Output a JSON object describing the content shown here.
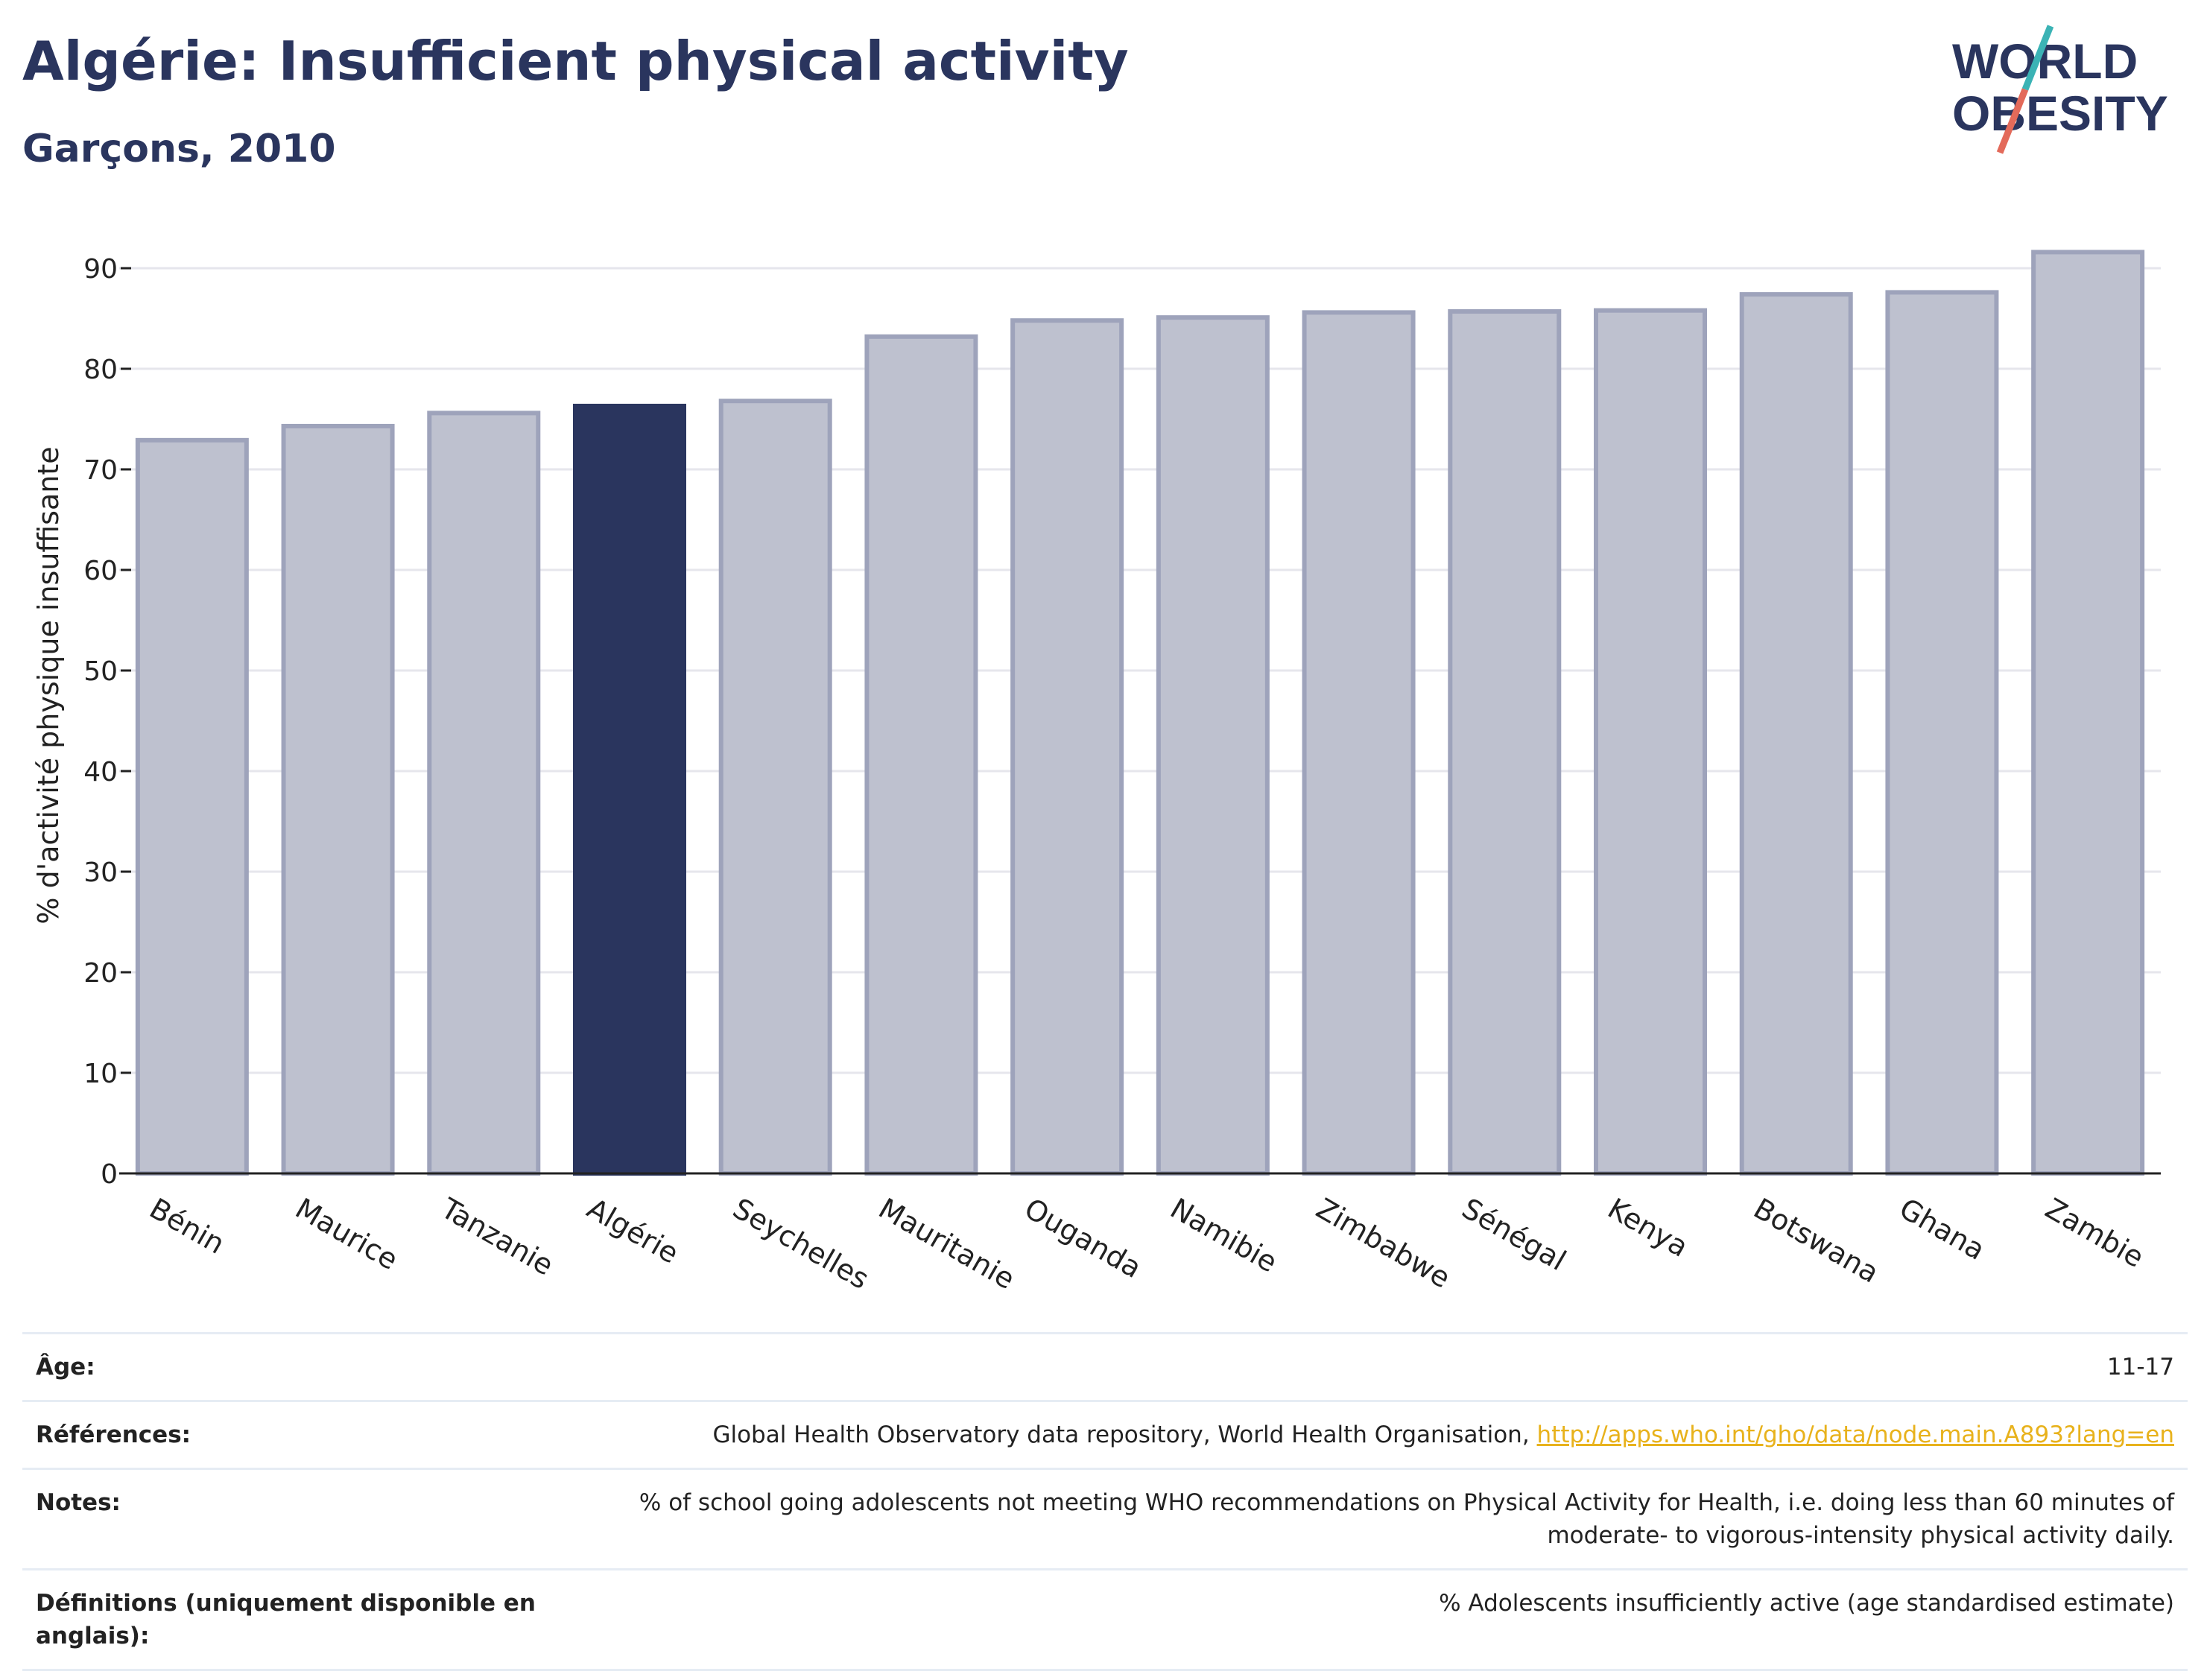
{
  "header": {
    "title": "Algérie: Insufficient physical activity",
    "subtitle": "Garçons, 2010"
  },
  "logo": {
    "line1": "WORLD",
    "line2": "OBESITY"
  },
  "colors": {
    "highlight": "#2a355e",
    "bar": "#bec1cf",
    "bar_stroke": "#9ea3bb",
    "accent_teal": "#3bb3b5",
    "accent_red": "#e36a5a"
  },
  "chart_data": {
    "type": "bar",
    "title": "Algérie: Insufficient physical activity",
    "subtitle": "Garçons, 2010",
    "xlabel": "",
    "ylabel": "% d'activité physique insuffisante",
    "ylim": [
      0,
      93
    ],
    "yticks": [
      0,
      10,
      20,
      30,
      40,
      50,
      60,
      70,
      80,
      90
    ],
    "grid": true,
    "highlight": "Algérie",
    "categories": [
      "Bénin",
      "Maurice",
      "Tanzanie",
      "Algérie",
      "Seychelles",
      "Mauritanie",
      "Ouganda",
      "Namibie",
      "Zimbabwe",
      "Sénégal",
      "Kenya",
      "Botswana",
      "Ghana",
      "Zambie"
    ],
    "values": [
      72.9,
      74.3,
      75.6,
      76.3,
      76.8,
      83.2,
      84.8,
      85.1,
      85.6,
      85.7,
      85.8,
      87.4,
      87.6,
      91.6
    ]
  },
  "meta": {
    "age_label": "Âge:",
    "age_value": "11-17",
    "refs_label": "Références:",
    "refs_text": "Global Health Observatory data repository, World Health Organisation, ",
    "refs_link": "http://apps.who.int/gho/data/node.main.A893?lang=en",
    "notes_label": "Notes:",
    "notes_value": "% of school going adolescents not meeting WHO recommendations on Physical Activity for Health, i.e. doing less than 60 minutes of moderate- to vigorous-intensity physical activity daily.",
    "defs_label": "Définitions (uniquement disponible en anglais):",
    "defs_value": "% Adolescents insufficiently active (age standardised estimate)"
  }
}
